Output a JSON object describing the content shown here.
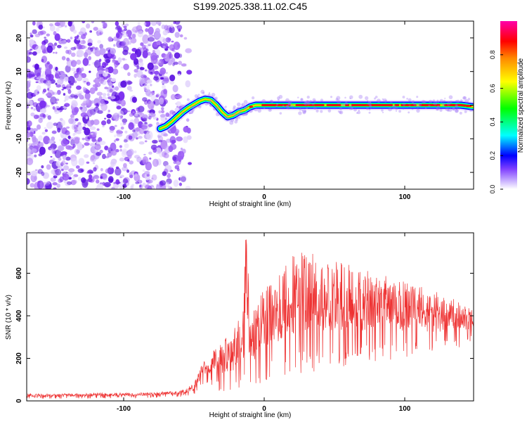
{
  "title": "S199.2025.338.11.02.C45",
  "chart_data": [
    {
      "type": "heatmap",
      "name": "spectrogram",
      "xlabel": "Height of straight line (km)",
      "ylabel": "Frequency (Hz)",
      "xlim": [
        -169,
        149
      ],
      "ylim": [
        -25,
        25
      ],
      "x_ticks": [
        -100,
        0,
        100
      ],
      "x_tick_labels": [
        "-100",
        "0",
        "100"
      ],
      "y_ticks": [
        -20,
        -10,
        0,
        10,
        20
      ],
      "y_tick_labels": [
        "-20",
        "-10",
        "0",
        "10",
        "20"
      ],
      "noise_region_x": [
        -169,
        -59
      ],
      "signal_track": {
        "x": [
          -74,
          -70,
          -66,
          -62,
          -58,
          -54,
          -50,
          -46,
          -42,
          -38,
          -34,
          -30,
          -26,
          -22,
          -18,
          -14,
          -10,
          -6,
          -2,
          0,
          20,
          40,
          60,
          80,
          100,
          120,
          140,
          149
        ],
        "frequency": [
          -7,
          -6.3,
          -5,
          -3.5,
          -2,
          -0.8,
          0.2,
          1.2,
          1.8,
          1.5,
          0,
          -2,
          -3.5,
          -3,
          -2,
          -1.5,
          -0.5,
          0,
          0,
          0,
          0,
          0,
          0,
          0,
          0,
          0,
          0,
          -0.5
        ]
      },
      "colorbar": {
        "label": "Normalized spectral amplitude",
        "range": [
          0,
          1
        ],
        "ticks": [
          0.0,
          0.2,
          0.4,
          0.6,
          0.8
        ],
        "tick_labels": [
          "0.0",
          "0.2",
          "0.4",
          "0.6",
          "0.8"
        ],
        "colors": [
          "#ffffff",
          "#a98cff",
          "#5500ff",
          "#0000ff",
          "#00ffff",
          "#00ff00",
          "#ffff00",
          "#ff8800",
          "#ff0000",
          "#ff00aa"
        ]
      }
    },
    {
      "type": "line",
      "name": "snr",
      "xlabel": "Height of straight line (km)",
      "ylabel": "SNR (10 * v/v)",
      "xlim": [
        -169,
        149
      ],
      "ylim": [
        0,
        790
      ],
      "x_ticks": [
        -100,
        0,
        100
      ],
      "x_tick_labels": [
        "-100",
        "0",
        "100"
      ],
      "y_ticks": [
        0,
        200,
        400,
        600
      ],
      "y_tick_labels": [
        "0",
        "200",
        "400",
        "600"
      ],
      "series": [
        {
          "name": "SNR",
          "color": "#ee3333",
          "envelope_x": [
            -169,
            -140,
            -110,
            -80,
            -60,
            -50,
            -45,
            -42,
            -40,
            -35,
            -30,
            -25,
            -20,
            -15,
            -13,
            -10,
            -5,
            0,
            10,
            20,
            30,
            40,
            50,
            60,
            80,
            100,
            120,
            140,
            149
          ],
          "envelope_upper": [
            35,
            35,
            38,
            40,
            50,
            80,
            170,
            195,
            175,
            250,
            290,
            320,
            360,
            420,
            790,
            440,
            470,
            540,
            610,
            680,
            710,
            680,
            660,
            640,
            600,
            560,
            520,
            470,
            430
          ],
          "envelope_lower": [
            10,
            10,
            12,
            15,
            18,
            30,
            60,
            90,
            80,
            60,
            40,
            30,
            40,
            30,
            50,
            40,
            60,
            80,
            100,
            110,
            130,
            140,
            150,
            160,
            180,
            200,
            220,
            250,
            280
          ]
        }
      ]
    }
  ]
}
